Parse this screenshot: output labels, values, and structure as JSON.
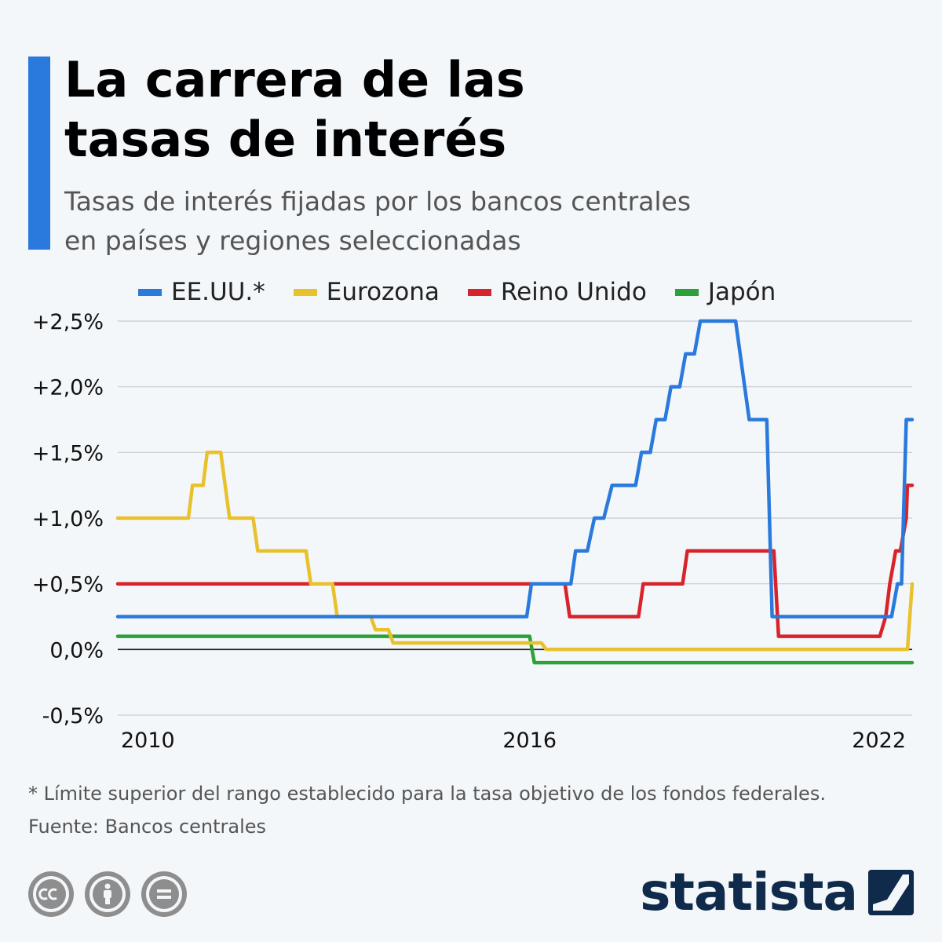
{
  "header": {
    "title_lines": [
      "La carrera de las",
      "tasas de interés"
    ],
    "subtitle_lines": [
      "Tasas de interés fijadas por los bancos centrales",
      "en países y regiones seleccionadas"
    ]
  },
  "colors": {
    "accent": "#2a79dc",
    "us": "#2a79dc",
    "eurozone": "#e8c12c",
    "uk": "#d8232a",
    "japan": "#2ea03a",
    "grid": "#c8cdd2",
    "zero_line": "#222222"
  },
  "chart_data": {
    "type": "line",
    "title": "La carrera de las tasas de interés",
    "subtitle": "Tasas de interés fijadas por los bancos centrales en países y regiones seleccionadas",
    "xlim": [
      2009.0,
      2022.5
    ],
    "ylim": [
      -0.5,
      2.5
    ],
    "x_ticks": [
      {
        "value": 2010,
        "label": "2010"
      },
      {
        "value": 2016,
        "label": "2016"
      },
      {
        "value": 2022,
        "label": "2022"
      }
    ],
    "y_ticks": [
      {
        "value": 2.5,
        "label": "+2,5%"
      },
      {
        "value": 2.0,
        "label": "+2,0%"
      },
      {
        "value": 1.5,
        "label": "+1,5%"
      },
      {
        "value": 1.0,
        "label": "+1,0%"
      },
      {
        "value": 0.5,
        "label": "+0,5%"
      },
      {
        "value": 0.0,
        "label": "0,0%"
      },
      {
        "value": -0.5,
        "label": "-0,5%"
      }
    ],
    "grid": true,
    "legend_position": "top",
    "series": [
      {
        "name": "EE.UU.*",
        "color": "#2a79dc",
        "points": [
          [
            2009.0,
            0.25
          ],
          [
            2015.95,
            0.25
          ],
          [
            2016.03,
            0.5
          ],
          [
            2016.7,
            0.5
          ],
          [
            2016.78,
            0.75
          ],
          [
            2016.98,
            0.75
          ],
          [
            2017.1,
            1.0
          ],
          [
            2017.26,
            1.0
          ],
          [
            2017.4,
            1.25
          ],
          [
            2017.8,
            1.25
          ],
          [
            2017.9,
            1.5
          ],
          [
            2018.05,
            1.5
          ],
          [
            2018.15,
            1.75
          ],
          [
            2018.3,
            1.75
          ],
          [
            2018.4,
            2.0
          ],
          [
            2018.55,
            2.0
          ],
          [
            2018.65,
            2.25
          ],
          [
            2018.8,
            2.25
          ],
          [
            2018.9,
            2.5
          ],
          [
            2019.5,
            2.5
          ],
          [
            2019.73,
            1.75
          ],
          [
            2020.03,
            1.75
          ],
          [
            2020.12,
            0.25
          ],
          [
            2022.15,
            0.25
          ],
          [
            2022.25,
            0.5
          ],
          [
            2022.32,
            0.5
          ],
          [
            2022.4,
            1.75
          ],
          [
            2022.5,
            1.75
          ]
        ]
      },
      {
        "name": "Eurozona",
        "color": "#e8c12c",
        "points": [
          [
            2009.0,
            1.0
          ],
          [
            2010.2,
            1.0
          ],
          [
            2010.27,
            1.25
          ],
          [
            2010.45,
            1.25
          ],
          [
            2010.52,
            1.5
          ],
          [
            2010.75,
            1.5
          ],
          [
            2010.9,
            1.0
          ],
          [
            2011.3,
            1.0
          ],
          [
            2011.38,
            0.75
          ],
          [
            2012.2,
            0.75
          ],
          [
            2012.28,
            0.5
          ],
          [
            2012.65,
            0.5
          ],
          [
            2012.73,
            0.25
          ],
          [
            2013.3,
            0.25
          ],
          [
            2013.38,
            0.15
          ],
          [
            2013.6,
            0.15
          ],
          [
            2013.68,
            0.05
          ],
          [
            2016.2,
            0.05
          ],
          [
            2016.28,
            0.0
          ],
          [
            2022.42,
            0.0
          ],
          [
            2022.5,
            0.5
          ]
        ]
      },
      {
        "name": "Reino Unido",
        "color": "#d8232a",
        "points": [
          [
            2009.0,
            0.5
          ],
          [
            2016.6,
            0.5
          ],
          [
            2016.68,
            0.25
          ],
          [
            2017.85,
            0.25
          ],
          [
            2017.93,
            0.5
          ],
          [
            2018.6,
            0.5
          ],
          [
            2018.68,
            0.75
          ],
          [
            2020.15,
            0.75
          ],
          [
            2020.23,
            0.1
          ],
          [
            2021.95,
            0.1
          ],
          [
            2022.05,
            0.25
          ],
          [
            2022.12,
            0.5
          ],
          [
            2022.22,
            0.75
          ],
          [
            2022.3,
            0.75
          ],
          [
            2022.4,
            1.0
          ],
          [
            2022.42,
            1.25
          ],
          [
            2022.5,
            1.25
          ]
        ]
      },
      {
        "name": "Japón",
        "color": "#2ea03a",
        "points": [
          [
            2009.0,
            0.1
          ],
          [
            2016.0,
            0.1
          ],
          [
            2016.08,
            -0.1
          ],
          [
            2022.5,
            -0.1
          ]
        ]
      }
    ],
    "footnote": "* Límite superior del rango establecido para la tasa objetivo de los fondos federales."
  },
  "footer": {
    "footnote_lines": [
      "* Límite superior del rango establecido para la tasa objetivo de los fondos federales.",
      "Fuente: Bancos centrales"
    ],
    "license_icons": [
      "cc-icon",
      "attribution-icon",
      "no-derivatives-icon"
    ],
    "brand": "statista"
  }
}
